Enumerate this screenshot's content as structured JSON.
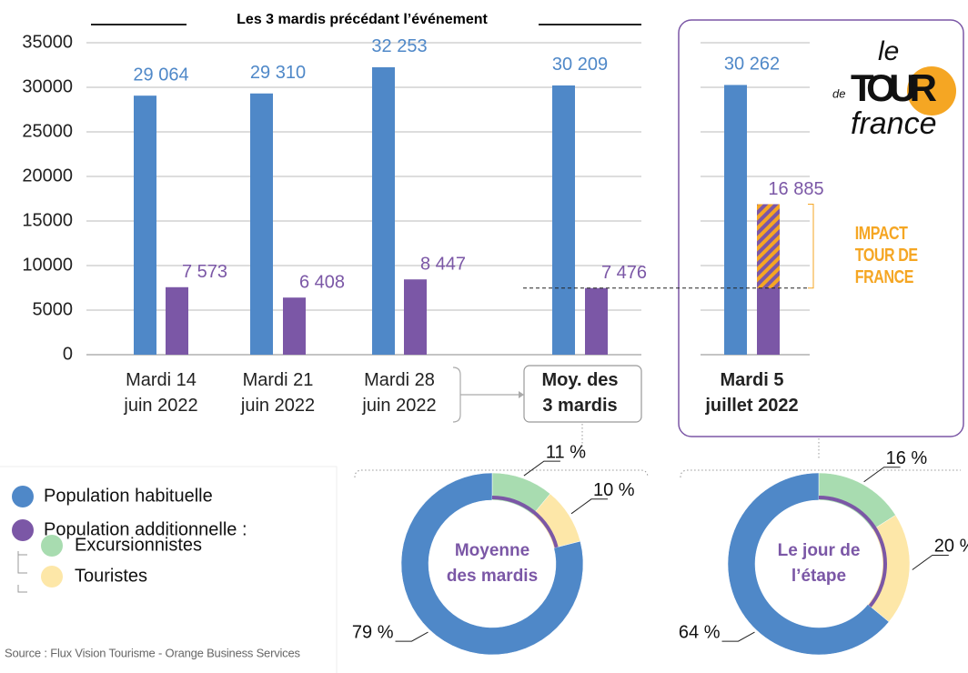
{
  "chart_data": [
    {
      "type": "bar",
      "subtitle": "Les 3 mardis précédant l’événement",
      "categories": [
        "Mardi 14\njuin 2022",
        "Mardi 21\njuin 2022",
        "Mardi 28\njuin 2022",
        "Moy. des\n3 mardis",
        "Mardi 5\njuillet 2022"
      ],
      "series": [
        {
          "name": "Population habituelle",
          "color": "#4f88c8",
          "values": [
            29064,
            29310,
            32253,
            30209,
            30262
          ],
          "value_labels": [
            "29 064",
            "29 310",
            "32 253",
            "30 209",
            "30 262"
          ]
        },
        {
          "name": "Population additionnelle :",
          "color": "#7b57a6",
          "values": [
            7573,
            6408,
            8447,
            7476,
            16885
          ],
          "value_labels": [
            "7 573",
            "6 408",
            "8 447",
            "7 476",
            "16 885"
          ]
        }
      ],
      "ylim": [
        0,
        35000
      ],
      "yticks": [
        0,
        5000,
        10000,
        15000,
        20000,
        25000,
        30000,
        35000
      ],
      "grid": true,
      "annotation": "IMPACT\nTOUR DE FRANCE",
      "annotation_color": "#f5a623"
    },
    {
      "type": "donut",
      "title": "Moyenne\ndes mardis",
      "values": [
        11,
        10,
        79
      ],
      "value_labels": [
        "11 %",
        "10 %",
        "79 %"
      ],
      "colors": [
        "#a8dcb0",
        "#fde7a8",
        "#4f88c8"
      ]
    },
    {
      "type": "donut",
      "title": "Le jour de\nl’étape",
      "values": [
        16,
        20,
        64
      ],
      "value_labels": [
        "16 %",
        "20 %",
        "64 %"
      ],
      "colors": [
        "#a8dcb0",
        "#fde7a8",
        "#4f88c8"
      ]
    }
  ],
  "legend": [
    {
      "name": "Excursionnistes",
      "color": "#a8dcb0"
    },
    {
      "name": "Touristes",
      "color": "#fde7a8"
    }
  ],
  "source": "Source : Flux Vision Tourisme - Orange Business Services",
  "logo": [
    "le",
    "de",
    "TOUR",
    "france"
  ]
}
